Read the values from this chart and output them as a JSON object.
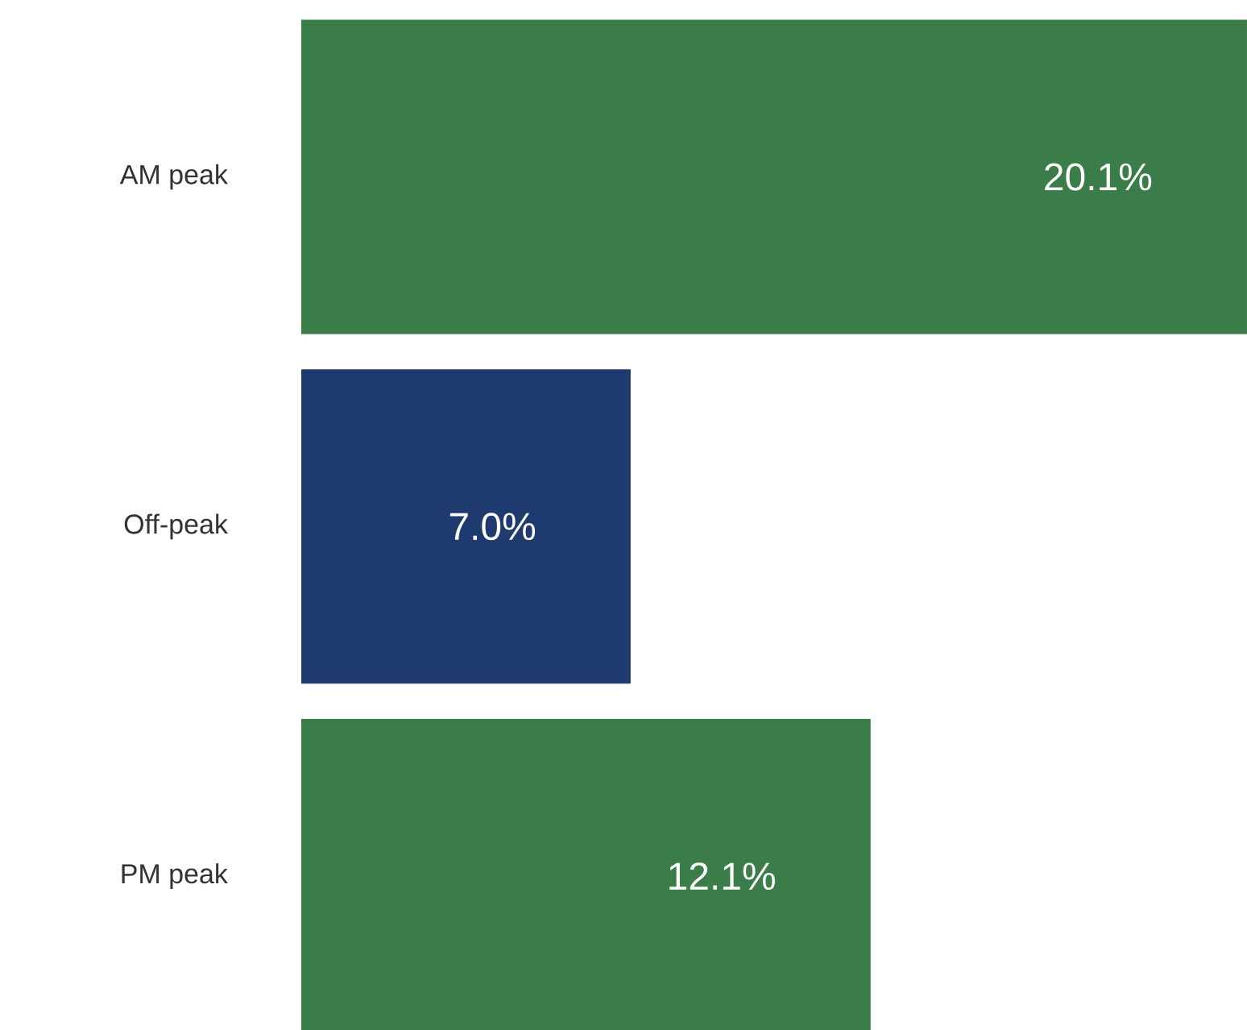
{
  "chart_data": {
    "type": "bar",
    "orientation": "horizontal",
    "categories": [
      "AM peak",
      "Off-peak",
      "PM peak"
    ],
    "values": [
      20.1,
      7.0,
      12.1
    ],
    "colors": [
      "#3b7d48",
      "#1f3a6e",
      "#3b7d48"
    ],
    "value_labels": [
      "20.1%",
      "7.0%",
      "12.1%"
    ]
  }
}
